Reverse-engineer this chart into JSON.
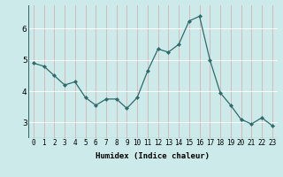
{
  "x": [
    0,
    1,
    2,
    3,
    4,
    5,
    6,
    7,
    8,
    9,
    10,
    11,
    12,
    13,
    14,
    15,
    16,
    17,
    18,
    19,
    20,
    21,
    22,
    23
  ],
  "y": [
    4.9,
    4.8,
    4.5,
    4.2,
    4.3,
    3.8,
    3.55,
    3.75,
    3.75,
    3.45,
    3.8,
    4.65,
    5.35,
    5.25,
    5.5,
    6.25,
    6.4,
    5.0,
    3.95,
    3.55,
    3.1,
    2.95,
    3.15,
    2.9
  ],
  "line_color": "#2e6b6b",
  "marker": "D",
  "marker_size": 2.0,
  "xlabel": "Humidex (Indice chaleur)",
  "bg_color": "#cceaea",
  "grid_color": "#ffffff",
  "grid_linecolor_v": "#c0d8d8",
  "ylim": [
    2.5,
    6.75
  ],
  "xlim": [
    -0.5,
    23.5
  ],
  "yticks": [
    3,
    4,
    5,
    6
  ],
  "xticks": [
    0,
    1,
    2,
    3,
    4,
    5,
    6,
    7,
    8,
    9,
    10,
    11,
    12,
    13,
    14,
    15,
    16,
    17,
    18,
    19,
    20,
    21,
    22,
    23
  ],
  "xlabel_fontsize": 6.5,
  "tick_fontsize": 5.5
}
